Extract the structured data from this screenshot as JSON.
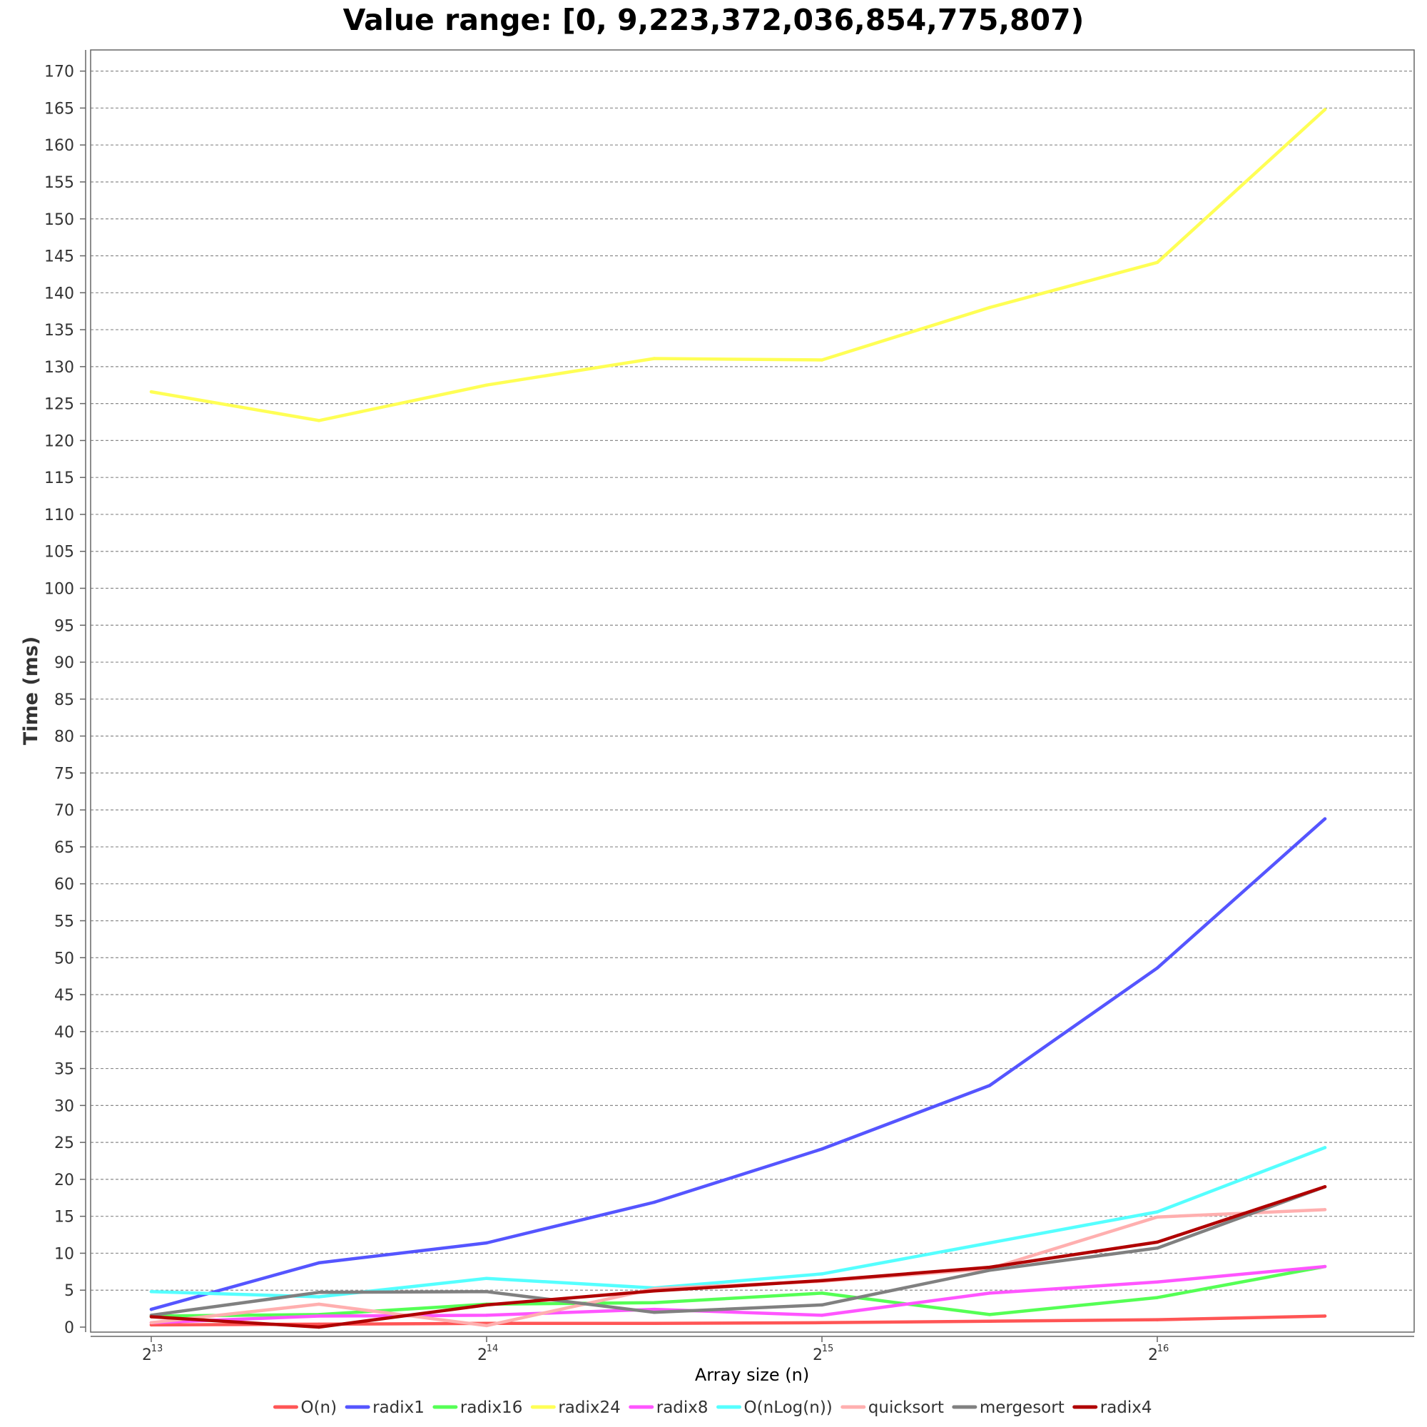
{
  "chart_data": {
    "type": "line",
    "title": "Value range: [0, 9,223,372,036,854,775,807)",
    "xlabel": "Array size (n)",
    "ylabel": "Time (ms)",
    "x_scale": "log2",
    "x": [
      8192,
      11585,
      16384,
      23170,
      32768,
      46341,
      65536,
      92682
    ],
    "x_ticks": [
      {
        "value": 8192,
        "base": "2",
        "exp": "13"
      },
      {
        "value": 16384,
        "base": "2",
        "exp": "14"
      },
      {
        "value": 32768,
        "base": "2",
        "exp": "15"
      },
      {
        "value": 65536,
        "base": "2",
        "exp": "16"
      }
    ],
    "ylim": [
      0,
      173
    ],
    "y_ticks": [
      0,
      5,
      10,
      15,
      20,
      25,
      30,
      35,
      40,
      45,
      50,
      55,
      60,
      65,
      70,
      75,
      80,
      85,
      90,
      95,
      100,
      105,
      110,
      115,
      120,
      125,
      130,
      135,
      140,
      145,
      150,
      155,
      160,
      165,
      170
    ],
    "grid": true,
    "legend_position": "bottom",
    "series": [
      {
        "name": "O(n)",
        "color": "#ff5555",
        "values": [
          0.3,
          0.4,
          0.5,
          0.5,
          0.6,
          0.8,
          1.0,
          1.5
        ]
      },
      {
        "name": "radix1",
        "color": "#5555ff",
        "values": [
          2.4,
          8.7,
          11.4,
          16.9,
          24.1,
          32.7,
          48.6,
          68.8
        ]
      },
      {
        "name": "radix16",
        "color": "#55ff55",
        "values": [
          1.5,
          1.7,
          3.1,
          3.3,
          4.6,
          1.7,
          4.0,
          8.2
        ]
      },
      {
        "name": "radix24",
        "color": "#ffff55",
        "values": [
          126.6,
          122.7,
          127.5,
          131.1,
          130.9,
          138.0,
          144.1,
          164.8
        ]
      },
      {
        "name": "radix8",
        "color": "#ff55ff",
        "values": [
          0.6,
          1.5,
          1.6,
          2.4,
          1.6,
          4.6,
          6.1,
          8.2
        ]
      },
      {
        "name": "O(nLog(n))",
        "color": "#55ffff",
        "values": [
          4.8,
          4.1,
          6.6,
          5.3,
          7.2,
          11.4,
          15.6,
          24.3
        ]
      },
      {
        "name": "quicksort",
        "color": "#ffafaf",
        "values": [
          0.6,
          3.1,
          0.2,
          5.2,
          6.2,
          7.9,
          14.9,
          15.9
        ]
      },
      {
        "name": "mergesort",
        "color": "#808080",
        "values": [
          1.6,
          4.7,
          4.8,
          2.0,
          3.0,
          7.7,
          10.7,
          19.0
        ]
      },
      {
        "name": "radix4",
        "color": "#b00000",
        "values": [
          1.4,
          0.0,
          3.0,
          4.9,
          6.3,
          8.1,
          11.5,
          19.0
        ]
      }
    ]
  }
}
